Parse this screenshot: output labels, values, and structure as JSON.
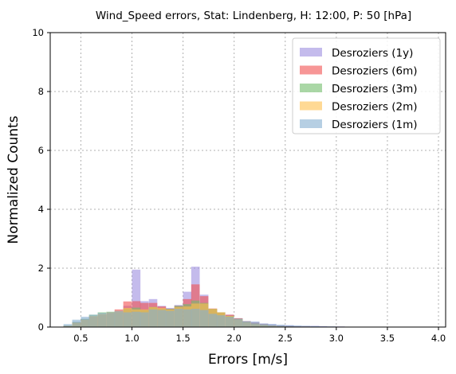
{
  "chart_data": {
    "type": "bar",
    "title": "Wind_Speed errors, Stat: Lindenberg, H: 12:00, P: 50 [hPa]",
    "xlabel": "Errors [m/s]",
    "ylabel": "Normalized Counts",
    "xlim": [
      0.2,
      4.07
    ],
    "ylim": [
      0,
      10
    ],
    "xticks": [
      "0.5",
      "1.0",
      "1.5",
      "2.0",
      "2.5",
      "3.0",
      "3.5",
      "4.0"
    ],
    "yticks": [
      "0",
      "2",
      "4",
      "6",
      "8",
      "10"
    ],
    "grid": true,
    "legend_position": "top-right",
    "bin_width": 0.083,
    "x": [
      0.33,
      0.415,
      0.5,
      0.58,
      0.665,
      0.75,
      0.83,
      0.915,
      1.0,
      1.08,
      1.165,
      1.25,
      1.33,
      1.415,
      1.5,
      1.58,
      1.665,
      1.75,
      1.83,
      1.915,
      2.0,
      2.08,
      2.165,
      2.25,
      2.33,
      2.415,
      2.5,
      2.58,
      2.665,
      2.75,
      2.83,
      2.915,
      3.0
    ],
    "series": [
      {
        "name": "Desroziers (1y)",
        "color": "#9d8ee0",
        "opacity": 0.6,
        "values": [
          0.05,
          0.18,
          0.28,
          0.36,
          0.42,
          0.48,
          0.55,
          0.72,
          1.95,
          0.88,
          0.95,
          0.72,
          0.65,
          0.75,
          1.2,
          2.05,
          1.1,
          0.62,
          0.5,
          0.42,
          0.3,
          0.2,
          0.18,
          0.12,
          0.1,
          0.06,
          0.06,
          0.04,
          0.04,
          0.04,
          0.03,
          0.02,
          0.02
        ]
      },
      {
        "name": "Desroziers (6m)",
        "color": "#f25050",
        "opacity": 0.6,
        "values": [
          0.04,
          0.15,
          0.25,
          0.35,
          0.42,
          0.5,
          0.6,
          0.87,
          0.88,
          0.82,
          0.82,
          0.7,
          0.62,
          0.72,
          0.95,
          1.45,
          1.05,
          0.63,
          0.5,
          0.42,
          0.3,
          0.2,
          0.15,
          0.1,
          0.06,
          0.04,
          0.03,
          0.02,
          0.02,
          0.01,
          0.01,
          0.01,
          0.0
        ]
      },
      {
        "name": "Desroziers (3m)",
        "color": "#72bd6a",
        "opacity": 0.6,
        "values": [
          0.05,
          0.17,
          0.28,
          0.42,
          0.5,
          0.52,
          0.5,
          0.62,
          0.66,
          0.58,
          0.68,
          0.62,
          0.62,
          0.72,
          0.78,
          0.9,
          0.82,
          0.62,
          0.5,
          0.38,
          0.28,
          0.18,
          0.12,
          0.08,
          0.05,
          0.03,
          0.02,
          0.01,
          0.01,
          0.0,
          0.0,
          0.0,
          0.0
        ]
      },
      {
        "name": "Desroziers (2m)",
        "color": "#ffc04c",
        "opacity": 0.6,
        "values": [
          0.04,
          0.15,
          0.25,
          0.38,
          0.45,
          0.5,
          0.55,
          0.65,
          0.6,
          0.6,
          0.68,
          0.65,
          0.6,
          0.68,
          0.7,
          0.8,
          0.8,
          0.62,
          0.5,
          0.38,
          0.26,
          0.16,
          0.1,
          0.06,
          0.04,
          0.02,
          0.01,
          0.01,
          0.0,
          0.0,
          0.0,
          0.0,
          0.0
        ]
      },
      {
        "name": "Desroziers (1m)",
        "color": "#85afd0",
        "opacity": 0.6,
        "values": [
          0.1,
          0.25,
          0.35,
          0.42,
          0.48,
          0.5,
          0.55,
          0.5,
          0.52,
          0.5,
          0.6,
          0.58,
          0.55,
          0.62,
          0.6,
          0.62,
          0.58,
          0.45,
          0.4,
          0.35,
          0.28,
          0.2,
          0.18,
          0.12,
          0.1,
          0.08,
          0.06,
          0.05,
          0.04,
          0.03,
          0.02,
          0.02,
          0.01
        ]
      }
    ]
  }
}
